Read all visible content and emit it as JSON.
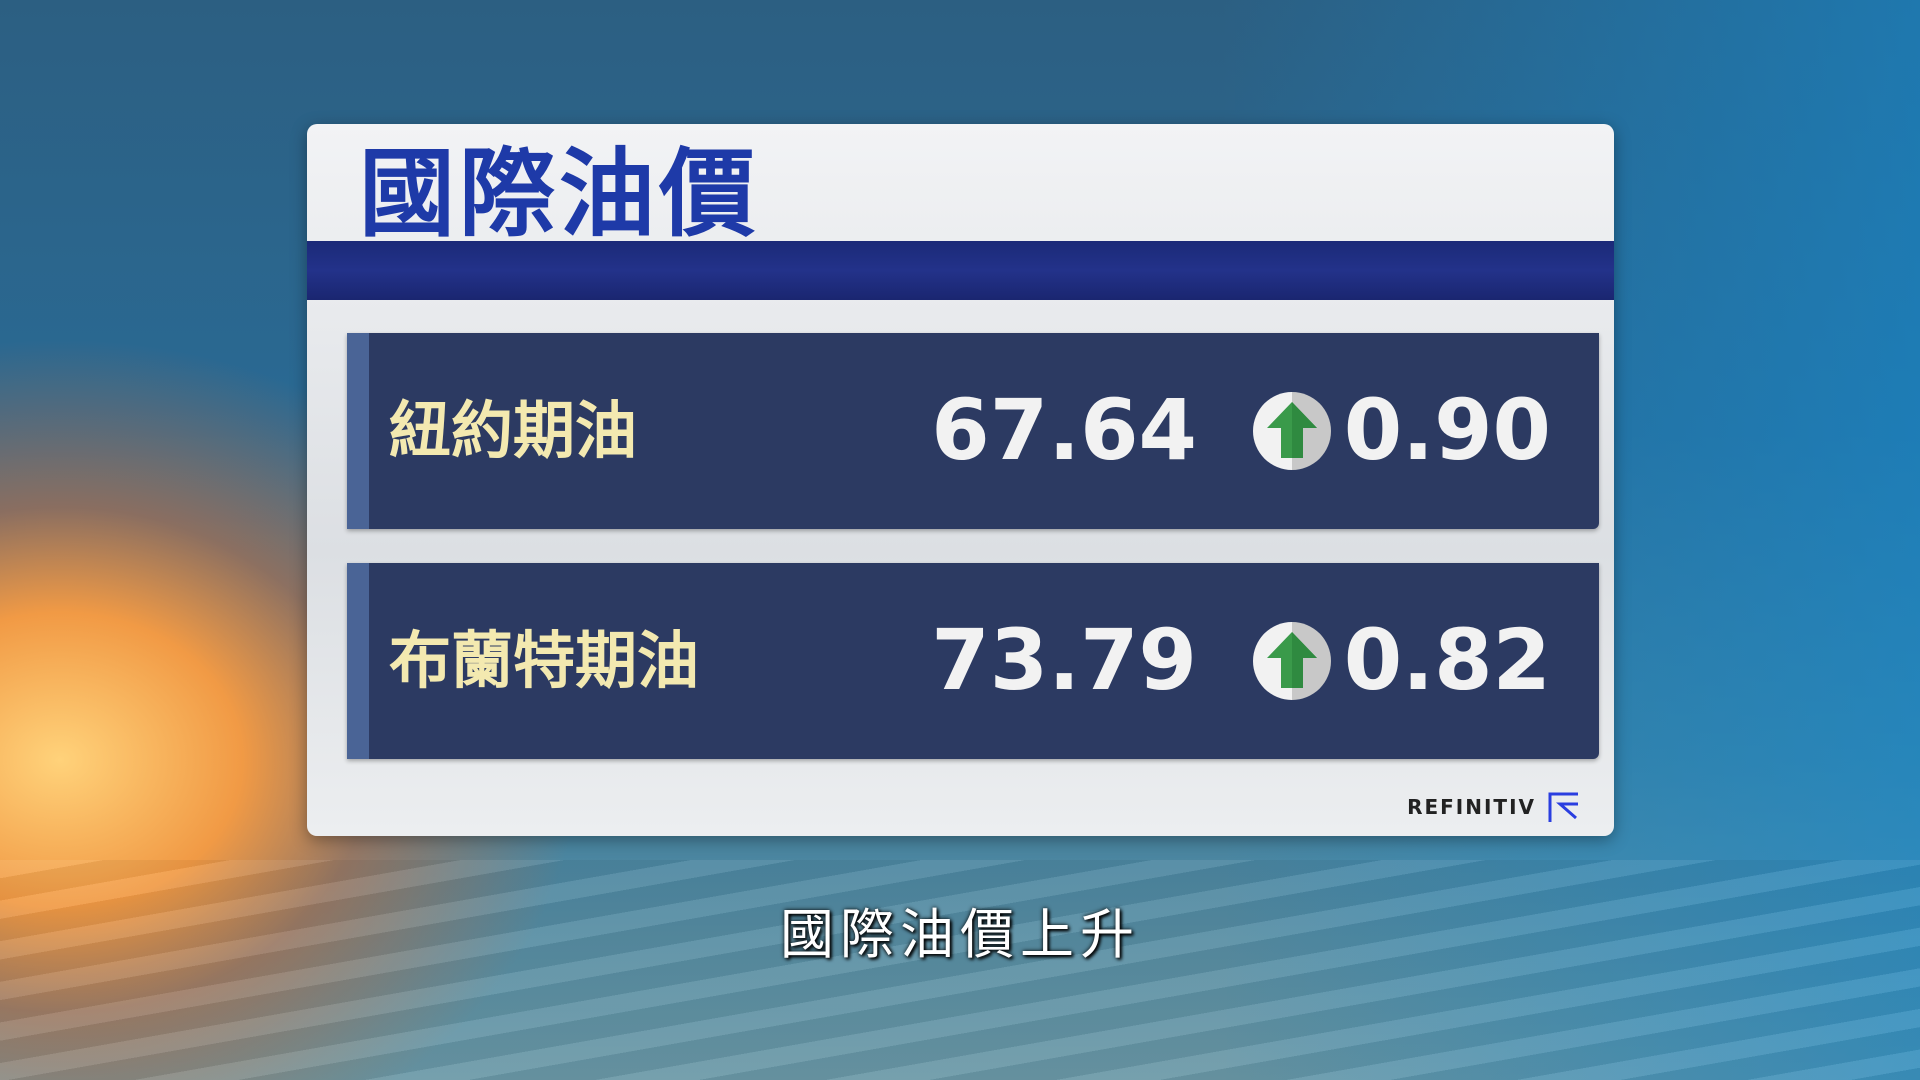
{
  "title": "國際油價",
  "rows": [
    {
      "label": "紐約期油",
      "price": "67.64",
      "direction": "up",
      "change": "0.90"
    },
    {
      "label": "布蘭特期油",
      "price": "73.79",
      "direction": "up",
      "change": "0.82"
    }
  ],
  "source": "REFINITIV",
  "subtitle": "國際油價上升",
  "colors": {
    "title": "#1e3aa8",
    "row_bg": "#2c3a62",
    "label": "#f3e9b0",
    "arrow": "#3a9a4a"
  }
}
